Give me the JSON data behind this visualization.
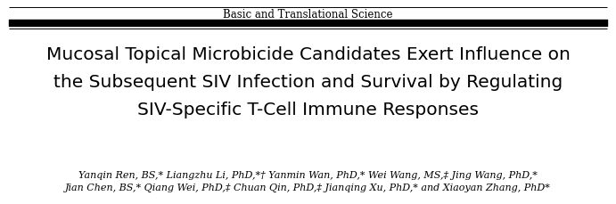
{
  "background_color": "#ffffff",
  "header_text": "Basic and Translational Science",
  "header_fontsize": 8.5,
  "header_color": "#000000",
  "line_color": "#000000",
  "title_lines": [
    "Mucosal Topical Microbicide Candidates Exert Influence on",
    "the Subsequent SIV Infection and Survival by Regulating",
    "SIV-Specific T-Cell Immune Responses"
  ],
  "title_fontsize": 14.5,
  "title_color": "#000000",
  "authors_lines": [
    "Yanqin Ren, BS,* Liangzhu Li, PhD,*† Yanmin Wan, PhD,* Wei Wang, MS,‡ Jing Wang, PhD,*",
    "Jian Chen, BS,* Qiang Wei, PhD,‡ Chuan Qin, PhD,‡ Jianqing Xu, PhD,* and Xiaoyan Zhang, PhD*"
  ],
  "authors_fontsize": 8.0,
  "authors_color": "#000000"
}
